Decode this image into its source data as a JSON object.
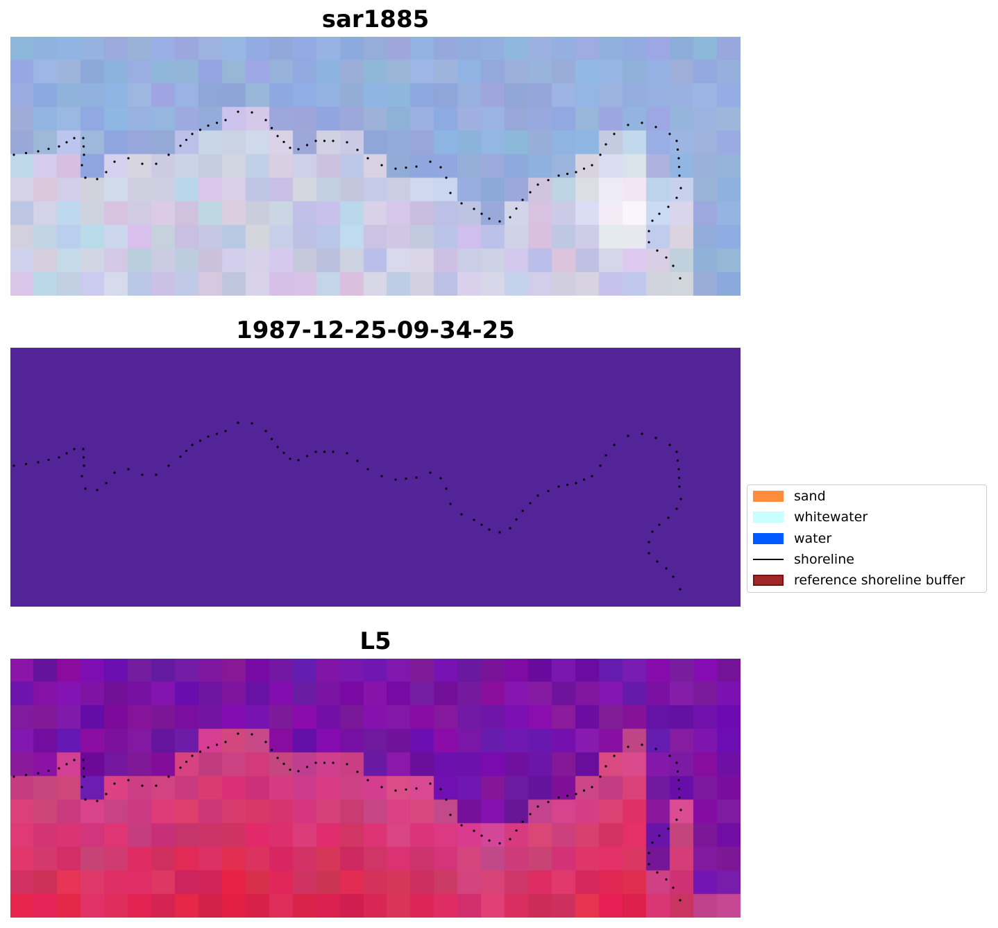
{
  "panels": [
    {
      "title": "sar1885",
      "kind": "rgb"
    },
    {
      "title": "1987-12-25-09-34-25",
      "kind": "classified"
    },
    {
      "title": "L5",
      "kind": "index"
    }
  ],
  "legend": {
    "items": [
      {
        "label": "sand",
        "type": "patch",
        "color": "#ff8c3c"
      },
      {
        "label": "whitewater",
        "type": "patch",
        "color": "#c8ffff"
      },
      {
        "label": "water",
        "type": "patch",
        "color": "#0059ff"
      },
      {
        "label": "shoreline",
        "type": "line",
        "color": "#000000"
      },
      {
        "label": "reference shoreline buffer",
        "type": "patch",
        "color": "#a02828"
      }
    ]
  },
  "colors": {
    "classified_background": "#532497",
    "shoreline_points": "#000000"
  }
}
